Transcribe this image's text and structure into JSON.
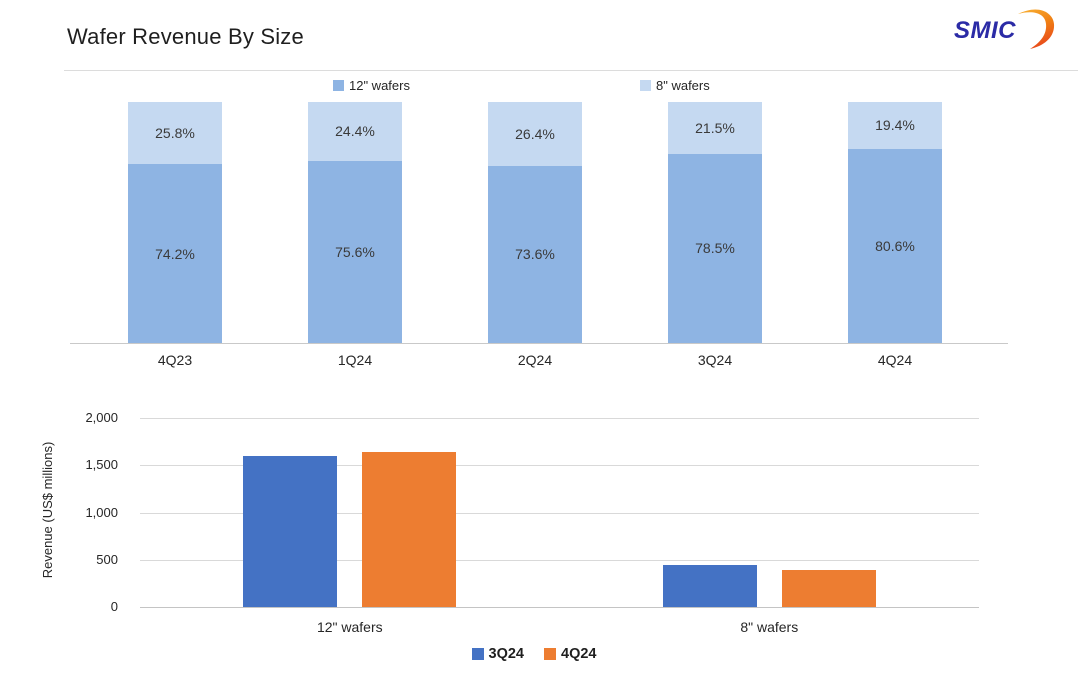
{
  "page": {
    "title": "Wafer Revenue By Size",
    "logo_text": "SMIC"
  },
  "chart_data": [
    {
      "type": "bar",
      "subtype": "stacked-100pct-column",
      "categories": [
        "4Q23",
        "1Q24",
        "2Q24",
        "3Q24",
        "4Q24"
      ],
      "series": [
        {
          "name": "12\" wafers",
          "color": "#8eb4e3",
          "values": [
            74.2,
            75.6,
            73.6,
            78.5,
            80.6
          ]
        },
        {
          "name": "8\" wafers",
          "color": "#c5d9f1",
          "values": [
            25.8,
            24.4,
            26.4,
            21.5,
            19.4
          ]
        }
      ],
      "value_suffix": "%",
      "legend_position": "top",
      "grid": false,
      "ylim": [
        0,
        100
      ]
    },
    {
      "type": "bar",
      "subtype": "grouped-column",
      "categories": [
        "12\" wafers",
        "8\" wafers"
      ],
      "series": [
        {
          "name": "3Q24",
          "color": "#4472c4",
          "values": [
            1600,
            440
          ]
        },
        {
          "name": "4Q24",
          "color": "#ed7d31",
          "values": [
            1640,
            395
          ]
        }
      ],
      "ylabel": "Revenue (US$ millions)",
      "ylim": [
        0,
        2000
      ],
      "yticks": [
        {
          "label": "0",
          "value": 0
        },
        {
          "label": "500",
          "value": 500
        },
        {
          "label": "1,000",
          "value": 1000
        },
        {
          "label": "1,500",
          "value": 1500
        },
        {
          "label": "2,000",
          "value": 2000
        }
      ],
      "legend_position": "bottom",
      "grid": true
    }
  ],
  "colors": {
    "background": "#ffffff",
    "gridline": "#d9d9d9",
    "axis_line": "#c9c9c9",
    "label_text": "#262626",
    "logo_blue": "#2b2ba6",
    "logo_orange_start": "#f9b233",
    "logo_orange_end": "#e94e1b"
  }
}
